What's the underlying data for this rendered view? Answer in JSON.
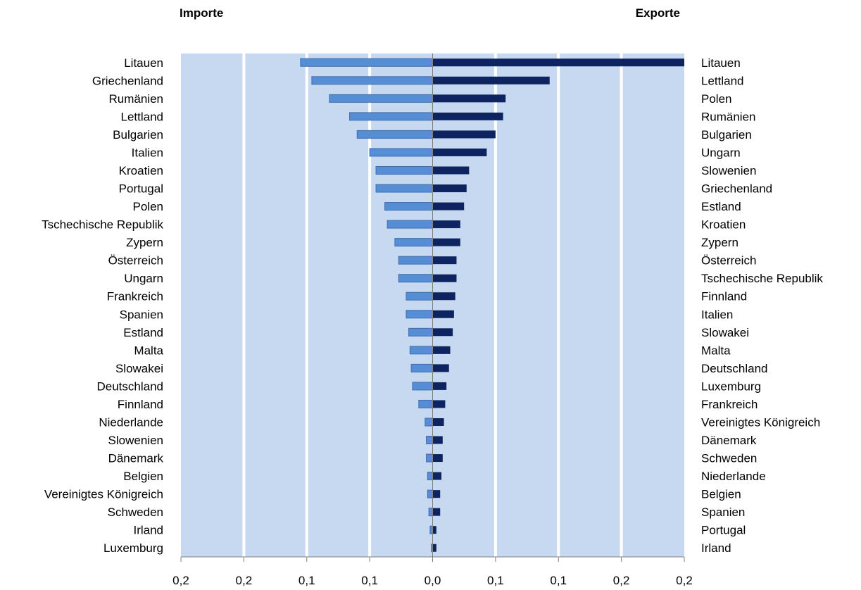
{
  "chart_data": {
    "type": "bar",
    "orientation": "horizontal-diverging",
    "title_left": "Importe",
    "title_right": "Exporte",
    "xlim": [
      -0.2,
      0.2
    ],
    "xticks": [
      -0.2,
      -0.15,
      -0.1,
      -0.05,
      0.0,
      0.05,
      0.1,
      0.15,
      0.2
    ],
    "xtick_labels": [
      "0,2",
      "0,2",
      "0,1",
      "0,1",
      "0,0",
      "0,1",
      "0,1",
      "0,2",
      "0,2"
    ],
    "grid": true,
    "colors": {
      "plot_bg": "#c6d9f1",
      "imports": "#558ed5",
      "exports": "#0d2461",
      "gridline": "#ffffff"
    },
    "series": [
      {
        "name": "Importe",
        "categories": [
          "Litauen",
          "Griechenland",
          "Rumänien",
          "Lettland",
          "Bulgarien",
          "Italien",
          "Kroatien",
          "Portugal",
          "Polen",
          "Tschechische Republik",
          "Zypern",
          "Österreich",
          "Ungarn",
          "Frankreich",
          "Spanien",
          "Estland",
          "Malta",
          "Slowakei",
          "Deutschland",
          "Finnland",
          "Niederlande",
          "Slowenien",
          "Dänemark",
          "Belgien",
          "Vereinigtes Königreich",
          "Schweden",
          "Irland",
          "Luxemburg"
        ],
        "values": [
          0.105,
          0.096,
          0.082,
          0.066,
          0.06,
          0.05,
          0.045,
          0.045,
          0.038,
          0.036,
          0.03,
          0.027,
          0.027,
          0.021,
          0.021,
          0.019,
          0.018,
          0.017,
          0.016,
          0.011,
          0.006,
          0.005,
          0.005,
          0.004,
          0.004,
          0.003,
          0.002,
          0.001
        ]
      },
      {
        "name": "Exporte",
        "categories": [
          "Litauen",
          "Lettland",
          "Polen",
          "Rumänien",
          "Bulgarien",
          "Ungarn",
          "Slowenien",
          "Griechenland",
          "Estland",
          "Kroatien",
          "Zypern",
          "Österreich",
          "Tschechische Republik",
          "Finnland",
          "Italien",
          "Slowakei",
          "Malta",
          "Deutschland",
          "Luxemburg",
          "Frankreich",
          "Vereinigtes Königreich",
          "Dänemark",
          "Schweden",
          "Niederlande",
          "Belgien",
          "Spanien",
          "Portugal",
          "Irland"
        ],
        "values": [
          0.2,
          0.093,
          0.058,
          0.056,
          0.05,
          0.043,
          0.029,
          0.027,
          0.025,
          0.022,
          0.022,
          0.019,
          0.019,
          0.018,
          0.017,
          0.016,
          0.014,
          0.013,
          0.011,
          0.01,
          0.009,
          0.008,
          0.008,
          0.007,
          0.006,
          0.006,
          0.003,
          0.003
        ]
      }
    ]
  }
}
